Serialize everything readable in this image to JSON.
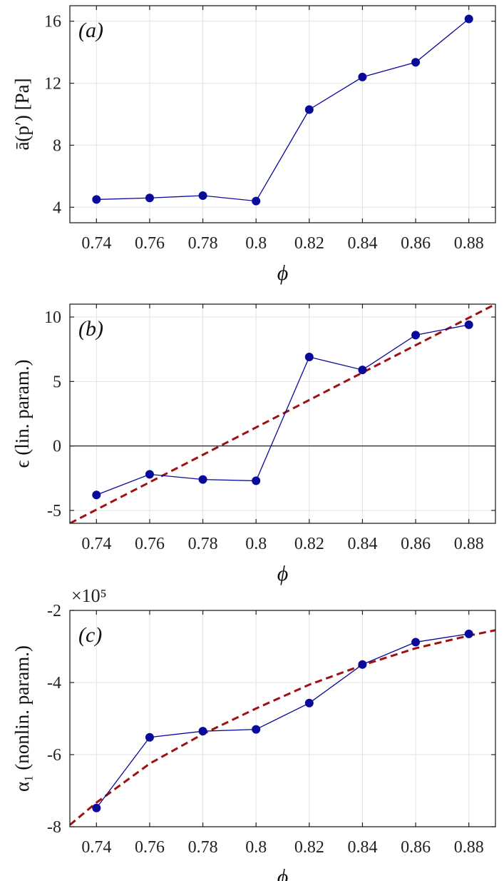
{
  "chart_data": [
    {
      "type": "line",
      "panel_label": "(a)",
      "ylabel": "ā(p′) [Pa]",
      "xlabel": "ϕ",
      "xlim": [
        0.73,
        0.89
      ],
      "ylim": [
        3,
        17
      ],
      "xticks": [
        0.74,
        0.76,
        0.78,
        0.8,
        0.82,
        0.84,
        0.86,
        0.88
      ],
      "xtick_labels": [
        "0.74",
        "0.76",
        "0.78",
        "0.8",
        "0.82",
        "0.84",
        "0.86",
        "0.88"
      ],
      "yticks": [
        4,
        8,
        12,
        16
      ],
      "ytick_labels": [
        "4",
        "8",
        "12",
        "16"
      ],
      "grid": true,
      "zero_line": false,
      "series": [
        {
          "x": [
            0.74,
            0.76,
            0.78,
            0.8,
            0.82,
            0.84,
            0.86,
            0.88
          ],
          "y": [
            4.5,
            4.6,
            4.75,
            4.4,
            10.3,
            12.4,
            13.35,
            16.15
          ],
          "color": "#0a0a9a",
          "marker": "circle"
        }
      ]
    },
    {
      "type": "line",
      "panel_label": "(b)",
      "ylabel": "ϵ (lin. param.)",
      "xlabel": "ϕ",
      "xlim": [
        0.73,
        0.89
      ],
      "ylim": [
        -6,
        11
      ],
      "xticks": [
        0.74,
        0.76,
        0.78,
        0.8,
        0.82,
        0.84,
        0.86,
        0.88
      ],
      "xtick_labels": [
        "0.74",
        "0.76",
        "0.78",
        "0.8",
        "0.82",
        "0.84",
        "0.86",
        "0.88"
      ],
      "yticks": [
        -5,
        0,
        5,
        10
      ],
      "ytick_labels": [
        "-5",
        "0",
        "5",
        "10"
      ],
      "grid": true,
      "zero_line": true,
      "series": [
        {
          "x": [
            0.74,
            0.76,
            0.78,
            0.8,
            0.82,
            0.84,
            0.86,
            0.88
          ],
          "y": [
            -3.8,
            -2.2,
            -2.6,
            -2.7,
            6.9,
            5.9,
            8.6,
            9.4
          ],
          "color": "#0a0a9a",
          "marker": "circle"
        }
      ],
      "fit": {
        "x": [
          0.73,
          0.89
        ],
        "y": [
          -6,
          11
        ],
        "color": "#a01010",
        "style": "dashed"
      }
    },
    {
      "type": "line",
      "panel_label": "(c)",
      "ylabel": "α₁ (nonlin. param.)",
      "xlabel": "ϕ",
      "exponent_label": "×10⁵",
      "xlim": [
        0.73,
        0.89
      ],
      "ylim": [
        -8,
        -2
      ],
      "xticks": [
        0.74,
        0.76,
        0.78,
        0.8,
        0.82,
        0.84,
        0.86,
        0.88
      ],
      "xtick_labels": [
        "0.74",
        "0.76",
        "0.78",
        "0.8",
        "0.82",
        "0.84",
        "0.86",
        "0.88"
      ],
      "yticks": [
        -8,
        -6,
        -4,
        -2
      ],
      "ytick_labels": [
        "-8",
        "-6",
        "-4",
        "-2"
      ],
      "grid": true,
      "zero_line": false,
      "series": [
        {
          "x": [
            0.74,
            0.76,
            0.78,
            0.8,
            0.82,
            0.84,
            0.86,
            0.88
          ],
          "y": [
            -7.48,
            -5.52,
            -5.35,
            -5.3,
            -4.57,
            -3.5,
            -2.88,
            -2.65
          ],
          "color": "#0a0a9a",
          "marker": "circle"
        }
      ],
      "fit": {
        "x": [
          0.73,
          0.74,
          0.76,
          0.78,
          0.8,
          0.82,
          0.84,
          0.86,
          0.88,
          0.89
        ],
        "y": [
          -7.95,
          -7.33,
          -6.25,
          -5.43,
          -4.72,
          -4.06,
          -3.52,
          -3.05,
          -2.7,
          -2.55
        ],
        "color": "#a01010",
        "style": "dashed"
      }
    }
  ]
}
